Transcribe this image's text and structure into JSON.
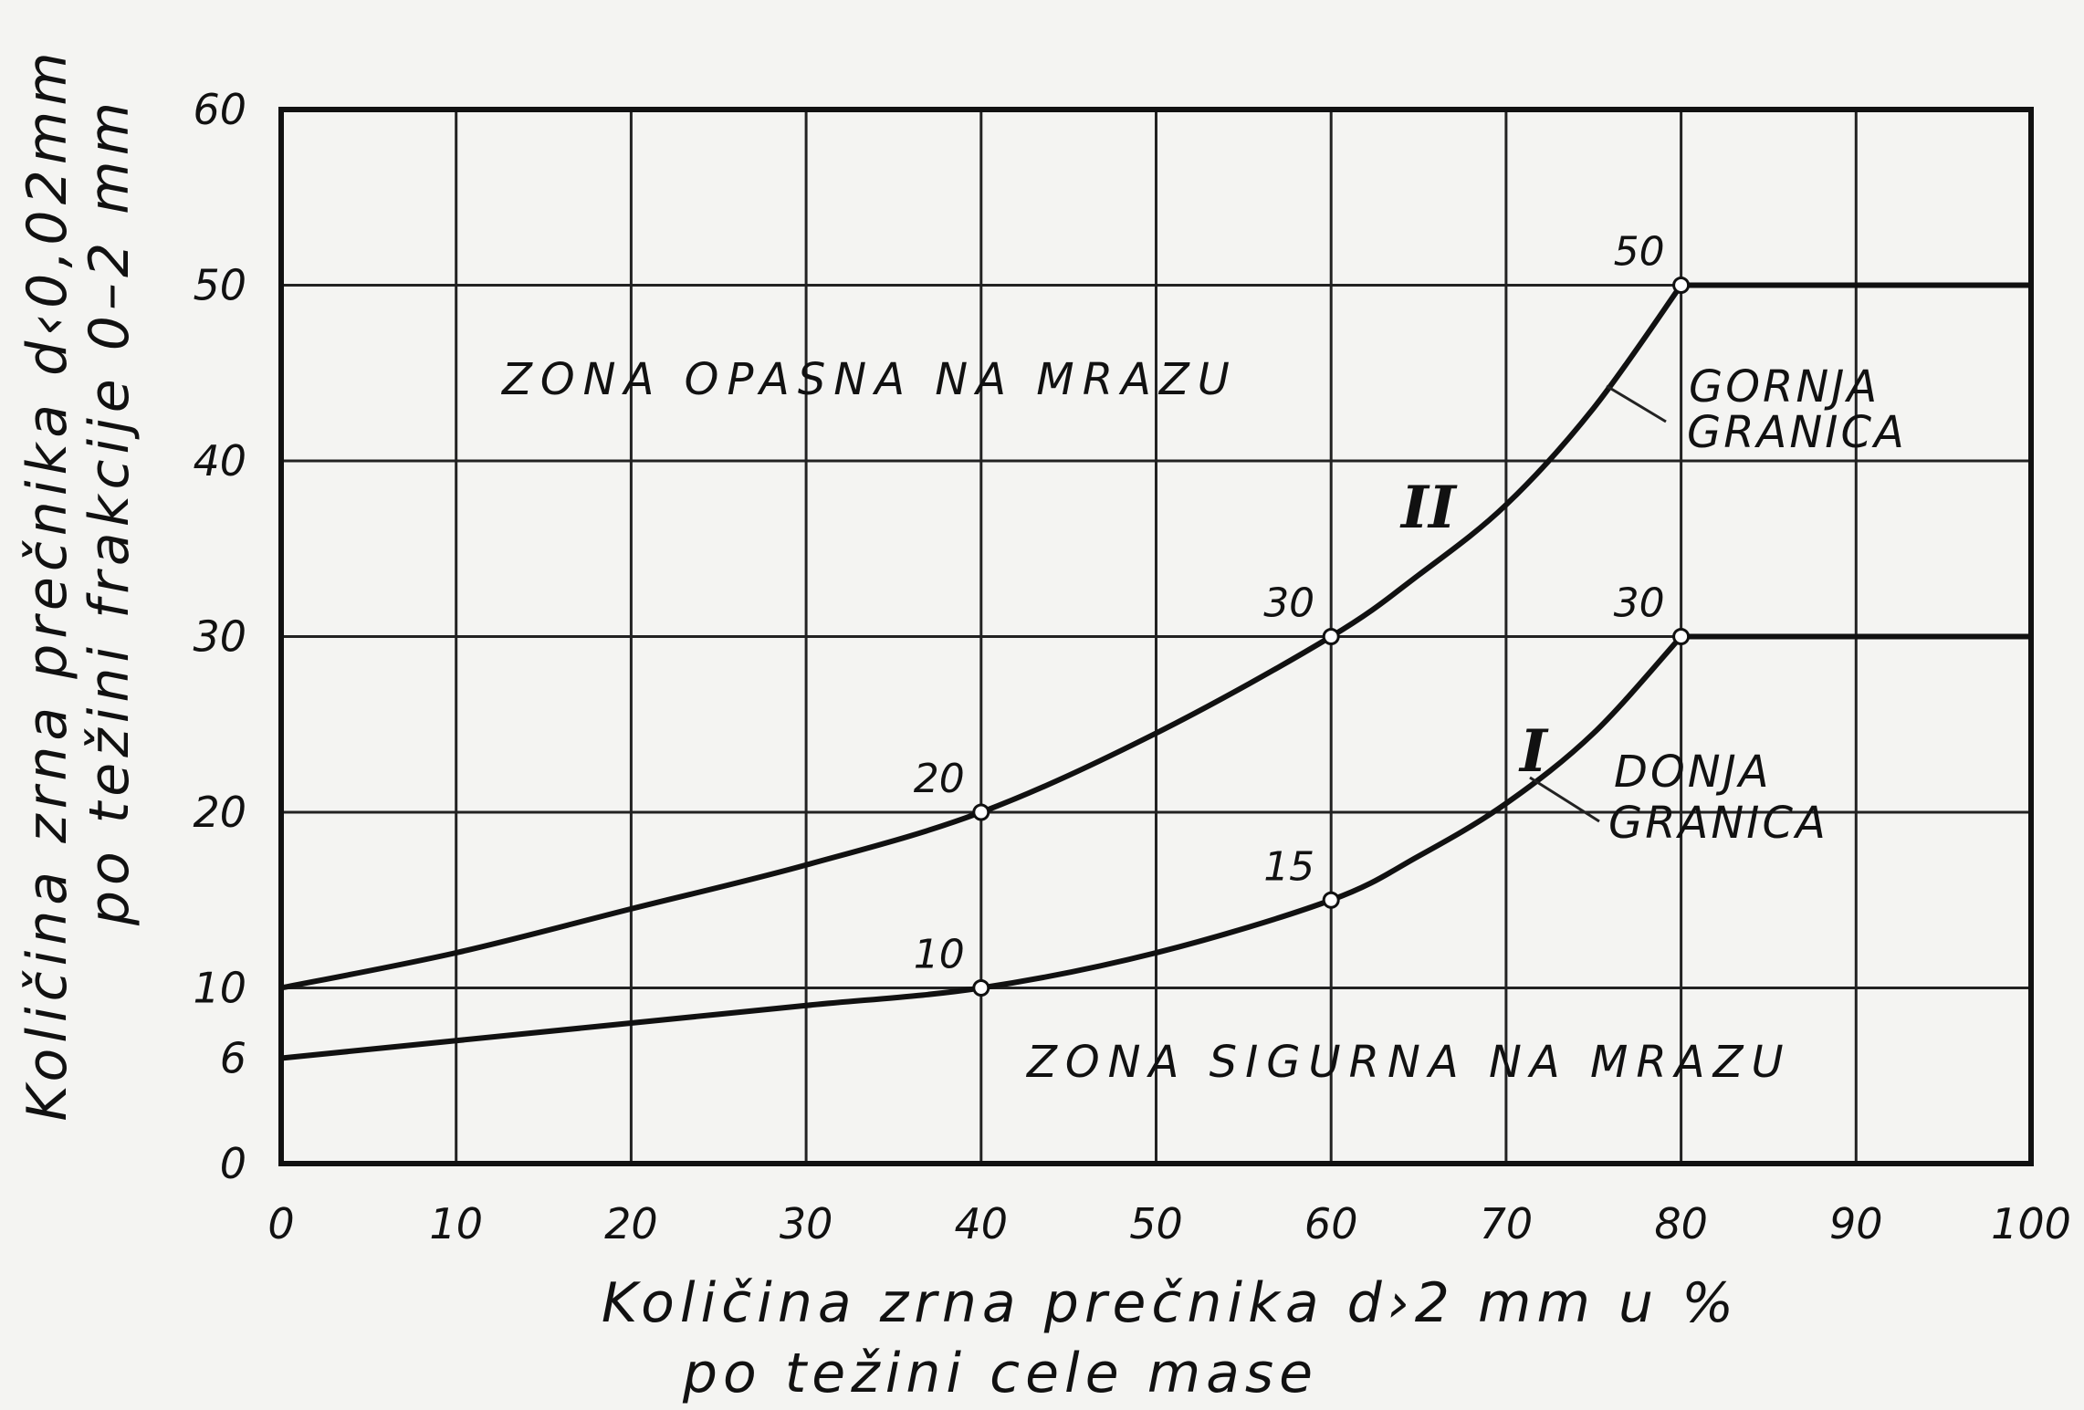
{
  "chart_data": {
    "type": "line",
    "xlabel_line1": "Količina zrna prečnika d›2 mm u %",
    "xlabel_line2": "po težini cele mase",
    "ylabel_line1": "Količina zrna prečnika d‹0,02mm",
    "ylabel_line2": "po težini frakcije 0–2 mm",
    "xlim": [
      0,
      100
    ],
    "ylim": [
      0,
      60
    ],
    "x_ticks": [
      0,
      10,
      20,
      30,
      40,
      50,
      60,
      70,
      80,
      90,
      100
    ],
    "y_ticks": [
      0,
      6,
      10,
      20,
      30,
      40,
      50,
      60
    ],
    "x_gridlines": [
      10,
      20,
      30,
      40,
      50,
      60,
      70,
      80,
      90
    ],
    "y_gridlines": [
      10,
      20,
      30,
      40,
      50
    ],
    "grid": true,
    "series": [
      {
        "roman": "II",
        "name_line1": "GORNJA",
        "name_line2": "GRANICA",
        "x": [
          0,
          10,
          20,
          30,
          40,
          50,
          60,
          65,
          70,
          75,
          80,
          90,
          100
        ],
        "y": [
          10,
          12,
          14.5,
          17,
          20,
          24.5,
          30,
          33.5,
          37.5,
          43,
          50,
          50,
          50
        ],
        "marked_points": [
          {
            "x": 40,
            "y": 20,
            "label": "20"
          },
          {
            "x": 60,
            "y": 30,
            "label": "30"
          },
          {
            "x": 80,
            "y": 50,
            "label": "50"
          }
        ]
      },
      {
        "roman": "I",
        "name_line1": "DONJA",
        "name_line2": "GRANICA",
        "x": [
          0,
          10,
          20,
          30,
          40,
          50,
          60,
          65,
          70,
          75,
          80,
          90,
          100
        ],
        "y": [
          6,
          7,
          8,
          9,
          10,
          12,
          15,
          17.5,
          20.5,
          24.5,
          30,
          30,
          30
        ],
        "marked_points": [
          {
            "x": 40,
            "y": 10,
            "label": "10"
          },
          {
            "x": 60,
            "y": 15,
            "label": "15"
          },
          {
            "x": 80,
            "y": 30,
            "label": "30"
          }
        ]
      }
    ],
    "annotations": {
      "zone_top": "ZONA OPASNA NA MRAZU",
      "zone_bottom": "ZONA SIGURNA NA MRAZU"
    }
  }
}
